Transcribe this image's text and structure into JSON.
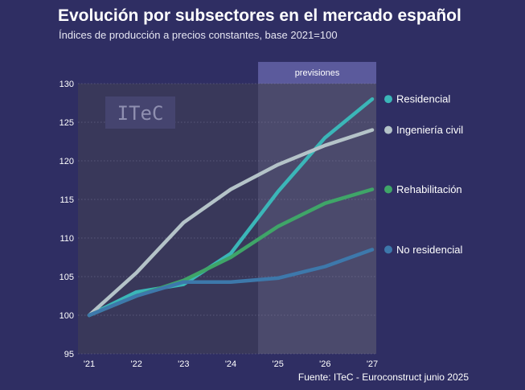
{
  "title": "Evolución por subsectores en el mercado español",
  "subtitle": "Índices de producción a precios constantes, base 2021=100",
  "source": "Fuente: ITeC - Euroconstruct junio 2025",
  "forecast_label": "previsiones",
  "logo_text": "ITeC",
  "colors": {
    "background": "#2f2e63",
    "plot_history": "#39385a",
    "plot_forecast": "#4b4a6c",
    "forecast_header": "#5b5a9c"
  },
  "chart_data": {
    "type": "line",
    "title": "Evolución por subsectores en el mercado español",
    "subtitle": "Índices de producción a precios constantes, base 2021=100",
    "categories": [
      "'21",
      "'22",
      "'23",
      "'24",
      "'25",
      "'26",
      "'27"
    ],
    "ylim": [
      95,
      130
    ],
    "yticks": [
      95,
      100,
      105,
      110,
      115,
      120,
      125,
      130
    ],
    "grid": true,
    "forecast_start": "'24",
    "series": [
      {
        "name": "Residencial",
        "color": "#3bb6b8",
        "values": [
          100,
          103,
          104,
          108,
          116,
          123,
          128
        ]
      },
      {
        "name": "Ingeniería civil",
        "color": "#b4c3c8",
        "values": [
          100,
          105.5,
          112,
          116.3,
          119.5,
          122,
          124
        ]
      },
      {
        "name": "Rehabilitación",
        "color": "#3fa568",
        "values": [
          100,
          102.5,
          104.5,
          107.5,
          111.5,
          114.5,
          116.3
        ]
      },
      {
        "name": "No residencial",
        "color": "#3d78ab",
        "values": [
          100,
          102.5,
          104.3,
          104.3,
          104.8,
          106.3,
          108.5
        ]
      }
    ]
  }
}
